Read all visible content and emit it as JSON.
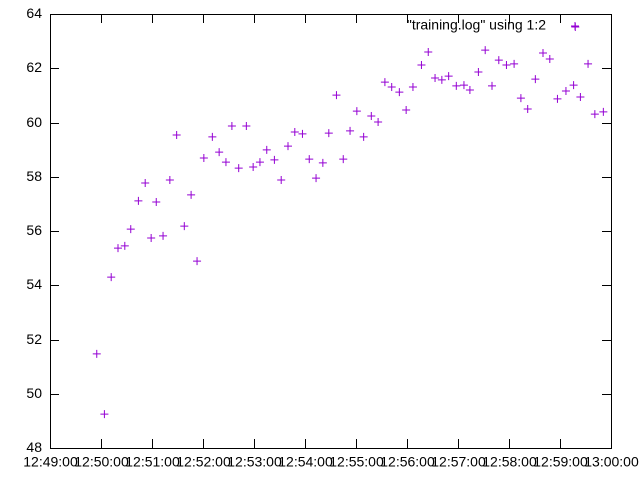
{
  "chart_data": {
    "type": "scatter",
    "series": [
      {
        "name": "\"training.log\" using 1:2",
        "color": "#9400d3",
        "x": [
          "12:49:55",
          "12:50:04",
          "12:50:12",
          "12:50:20",
          "12:50:28",
          "12:50:35",
          "12:50:44",
          "12:50:52",
          "12:50:59",
          "12:51:05",
          "12:51:13",
          "12:51:21",
          "12:51:29",
          "12:51:38",
          "12:51:46",
          "12:51:53",
          "12:52:01",
          "12:52:11",
          "12:52:19",
          "12:52:27",
          "12:52:34",
          "12:52:42",
          "12:52:51",
          "12:52:59",
          "12:53:07",
          "12:53:15",
          "12:53:24",
          "12:53:32",
          "12:53:40",
          "12:53:48",
          "12:53:57",
          "12:54:05",
          "12:54:13",
          "12:54:21",
          "12:54:28",
          "12:54:37",
          "12:54:45",
          "12:54:53",
          "12:55:01",
          "12:55:09",
          "12:55:18",
          "12:55:26",
          "12:55:34",
          "12:55:42",
          "12:55:51",
          "12:55:59",
          "12:56:07",
          "12:56:17",
          "12:56:25",
          "12:56:33",
          "12:56:41",
          "12:56:49",
          "12:56:58",
          "12:57:07",
          "12:57:14",
          "12:57:24",
          "12:57:32",
          "12:57:40",
          "12:57:48",
          "12:57:57",
          "12:58:06",
          "12:58:14",
          "12:58:22",
          "12:58:31",
          "12:58:40",
          "12:58:48",
          "12:58:57",
          "12:59:07",
          "12:59:16",
          "12:59:18",
          "12:59:24",
          "12:59:33",
          "12:59:41",
          "12:59:51"
        ],
        "values": [
          51.47,
          49.25,
          54.3,
          55.37,
          55.45,
          56.07,
          57.11,
          57.77,
          55.74,
          57.07,
          55.82,
          57.88,
          59.54,
          56.18,
          57.33,
          54.89,
          58.69,
          59.47,
          58.91,
          58.54,
          59.87,
          58.32,
          59.87,
          58.36,
          58.54,
          58.99,
          58.62,
          57.88,
          59.13,
          59.65,
          59.58,
          58.65,
          57.95,
          58.51,
          59.61,
          61.01,
          58.65,
          59.69,
          60.42,
          59.47,
          60.24,
          60.02,
          61.49,
          61.31,
          61.12,
          60.46,
          61.31,
          62.12,
          62.6,
          61.64,
          61.57,
          61.71,
          61.35,
          61.38,
          61.2,
          61.86,
          62.67,
          61.35,
          62.3,
          62.12,
          62.16,
          60.9,
          60.5,
          61.6,
          62.56,
          62.34,
          60.87,
          61.16,
          61.38,
          63.52,
          60.94,
          62.16,
          60.31,
          60.39
        ]
      }
    ],
    "xlim": [
      "12:49:00",
      "13:00:00"
    ],
    "xticks": [
      "12:49:00",
      "12:50:00",
      "12:51:00",
      "12:52:00",
      "12:53:00",
      "12:54:00",
      "12:55:00",
      "12:56:00",
      "12:57:00",
      "12:58:00",
      "12:59:00",
      "13:00:00"
    ],
    "ylim": [
      48,
      64
    ],
    "yticks": [
      48,
      50,
      52,
      54,
      56,
      58,
      60,
      62,
      64
    ],
    "legend": "top-right"
  }
}
